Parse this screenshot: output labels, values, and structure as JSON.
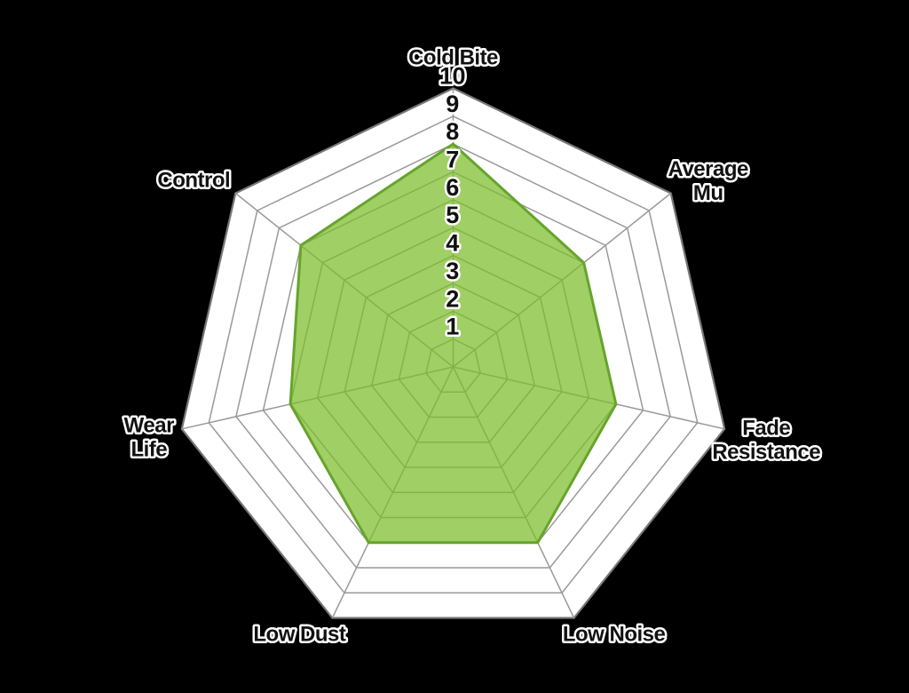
{
  "background_color": "#000000",
  "chart_data": {
    "type": "radar",
    "title": "",
    "categories": [
      "Cold Bite",
      "Average Mu",
      "Fade Resistance",
      "Low Noise",
      "Low Dust",
      "Wear Life",
      "Control"
    ],
    "values": [
      8,
      6,
      6,
      7,
      7,
      6,
      7
    ],
    "axis_label_lines": [
      [
        "Cold Bite"
      ],
      [
        "Average",
        "Mu"
      ],
      [
        "Fade",
        "Resistance"
      ],
      [
        "Low Noise"
      ],
      [
        "Low Dust"
      ],
      [
        "Wear",
        "Life"
      ],
      [
        "Control"
      ]
    ],
    "scale": {
      "min": 0,
      "max": 10,
      "ring_step": 1,
      "tick_labels": [
        "1",
        "2",
        "3",
        "4",
        "5",
        "6",
        "7",
        "8",
        "9",
        "10"
      ],
      "tick_axis": "Cold Bite"
    },
    "grid_on": true,
    "legend": "none",
    "colors": {
      "background": "#000000",
      "web_fill": "#FFFFFF",
      "grid_line": "#999999",
      "rim_line": "#777777",
      "series_fill": "#7CBD2A",
      "series_fill_opacity": 0.72,
      "series_stroke": "#66A42B",
      "label_text": "#111111",
      "label_halo": "#FFFFFF"
    }
  }
}
